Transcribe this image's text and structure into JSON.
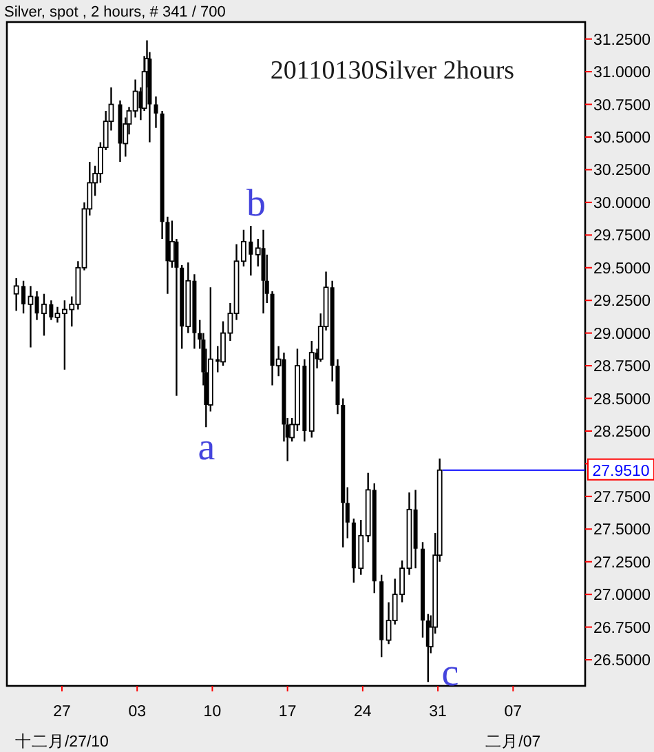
{
  "chart_data": {
    "type": "candlestick",
    "title": "20110130Silver 2hours",
    "subtitle": "Silver, spot , 2 hours, # 341 / 700",
    "color": "#000000",
    "x": [
      "2010-12-22T18:00",
      "2010-12-23T10:00",
      "2010-12-24T02:00",
      "2010-12-24T16:00",
      "2010-12-25T08:00",
      "2010-12-26T00:00",
      "2010-12-26T14:00",
      "2010-12-27T06:00",
      "2010-12-27T22:00",
      "2010-12-28T12:00",
      "2010-12-29T02:00",
      "2010-12-29T14:00",
      "2010-12-30T02:00",
      "2010-12-30T14:00",
      "2010-12-31T02:00",
      "2010-12-31T14:00",
      "2011-01-01T10:00",
      "2011-01-01T22:00",
      "2011-01-02T06:00",
      "2011-01-02T20:00",
      "2011-01-03T08:00",
      "2011-01-03T16:00",
      "2011-01-03T22:00",
      "2011-01-04T04:00",
      "2011-01-04T18:00",
      "2011-01-05T08:00",
      "2011-01-05T20:00",
      "2011-01-06T06:00",
      "2011-01-06T16:00",
      "2011-01-07T04:00",
      "2011-01-07T18:00",
      "2011-01-08T08:00",
      "2011-01-08T20:00",
      "2011-01-09T04:00",
      "2011-01-09T10:00",
      "2011-01-09T20:00",
      "2011-01-10T12:00",
      "2011-01-11T00:00",
      "2011-01-11T16:00",
      "2011-01-12T06:00",
      "2011-01-12T22:00",
      "2011-01-13T14:00",
      "2011-01-14T06:00",
      "2011-01-14T18:00",
      "2011-01-15T02:00",
      "2011-01-15T14:00",
      "2011-01-16T04:00",
      "2011-01-16T16:00",
      "2011-01-17T00:00",
      "2011-01-17T10:00",
      "2011-01-17T22:00",
      "2011-01-18T14:00",
      "2011-01-19T06:00",
      "2011-01-19T18:00",
      "2011-01-20T02:00",
      "2011-01-20T14:00",
      "2011-01-21T04:00",
      "2011-01-21T16:00",
      "2011-01-22T04:00",
      "2011-01-22T14:00",
      "2011-01-23T04:00",
      "2011-01-23T20:00",
      "2011-01-24T12:00",
      "2011-01-25T02:00",
      "2011-01-25T18:00",
      "2011-01-26T10:00",
      "2011-01-27T00:00",
      "2011-01-27T16:00",
      "2011-01-28T08:00",
      "2011-01-28T22:00",
      "2011-01-29T14:00",
      "2011-01-30T02:00",
      "2011-01-30T08:00",
      "2011-01-30T18:00",
      "2011-01-31T04:00"
    ],
    "ohlc": [
      [
        29.3,
        29.42,
        29.17,
        29.36
      ],
      [
        29.36,
        29.4,
        29.15,
        29.22
      ],
      [
        29.22,
        29.36,
        28.89,
        29.28
      ],
      [
        29.28,
        29.32,
        29.1,
        29.15
      ],
      [
        29.15,
        29.3,
        28.98,
        29.22
      ],
      [
        29.22,
        29.25,
        29.1,
        29.12
      ],
      [
        29.12,
        29.2,
        29.08,
        29.15
      ],
      [
        29.15,
        29.25,
        28.72,
        29.18
      ],
      [
        29.18,
        29.28,
        29.05,
        29.22
      ],
      [
        29.22,
        29.55,
        29.18,
        29.5
      ],
      [
        29.5,
        30.0,
        29.48,
        29.95
      ],
      [
        29.95,
        30.31,
        29.9,
        30.15
      ],
      [
        30.15,
        30.28,
        30.05,
        30.22
      ],
      [
        30.22,
        30.46,
        30.15,
        30.42
      ],
      [
        30.42,
        30.7,
        30.4,
        30.62
      ],
      [
        30.62,
        30.88,
        30.55,
        30.75
      ],
      [
        30.75,
        30.78,
        30.31,
        30.45
      ],
      [
        30.45,
        30.65,
        30.35,
        30.6
      ],
      [
        30.6,
        30.73,
        30.52,
        30.7
      ],
      [
        30.7,
        30.94,
        30.65,
        30.85
      ],
      [
        30.85,
        30.88,
        30.63,
        30.72
      ],
      [
        30.72,
        31.12,
        30.7,
        31.0
      ],
      [
        31.0,
        31.24,
        30.88,
        31.1
      ],
      [
        31.1,
        31.15,
        30.46,
        30.75
      ],
      [
        30.75,
        30.81,
        30.57,
        30.68
      ],
      [
        30.68,
        30.7,
        29.72,
        29.85
      ],
      [
        29.85,
        29.89,
        29.3,
        29.55
      ],
      [
        29.55,
        29.86,
        29.5,
        29.7
      ],
      [
        29.7,
        29.72,
        28.52,
        29.5
      ],
      [
        29.5,
        29.52,
        28.88,
        29.05
      ],
      [
        29.05,
        29.54,
        29.0,
        29.4
      ],
      [
        29.4,
        29.45,
        28.88,
        29.0
      ],
      [
        29.0,
        29.1,
        28.88,
        28.95
      ],
      [
        28.95,
        29.0,
        28.6,
        28.7
      ],
      [
        28.7,
        28.88,
        28.28,
        28.45
      ],
      [
        28.45,
        29.35,
        28.4,
        28.8
      ],
      [
        28.8,
        28.9,
        28.7,
        28.78
      ],
      [
        28.78,
        29.09,
        28.75,
        29.0
      ],
      [
        29.0,
        29.23,
        28.94,
        29.15
      ],
      [
        29.15,
        29.68,
        29.1,
        29.55
      ],
      [
        29.55,
        29.79,
        29.51,
        29.7
      ],
      [
        29.7,
        29.82,
        29.44,
        29.6
      ],
      [
        29.6,
        29.72,
        29.51,
        29.65
      ],
      [
        29.65,
        29.79,
        29.15,
        29.4
      ],
      [
        29.4,
        29.6,
        29.23,
        29.3
      ],
      [
        29.3,
        29.32,
        28.6,
        28.75
      ],
      [
        28.75,
        28.9,
        28.67,
        28.8
      ],
      [
        28.8,
        28.85,
        28.17,
        28.3
      ],
      [
        28.3,
        28.35,
        28.02,
        28.2
      ],
      [
        28.2,
        28.35,
        28.17,
        28.3
      ],
      [
        28.3,
        28.88,
        28.25,
        28.75
      ],
      [
        28.75,
        28.8,
        28.17,
        28.25
      ],
      [
        28.25,
        28.94,
        28.2,
        28.85
      ],
      [
        28.85,
        28.88,
        28.73,
        28.8
      ],
      [
        28.8,
        29.15,
        28.78,
        29.05
      ],
      [
        29.05,
        29.47,
        29.02,
        29.35
      ],
      [
        29.35,
        29.4,
        28.63,
        28.75
      ],
      [
        28.75,
        28.8,
        28.38,
        28.45
      ],
      [
        28.45,
        28.5,
        27.36,
        27.7
      ],
      [
        27.7,
        27.82,
        27.43,
        27.55
      ],
      [
        27.55,
        27.58,
        27.09,
        27.2
      ],
      [
        27.2,
        27.57,
        27.15,
        27.45
      ],
      [
        27.45,
        27.93,
        27.4,
        27.8
      ],
      [
        27.8,
        27.85,
        27.01,
        27.1
      ],
      [
        27.1,
        27.15,
        26.52,
        26.65
      ],
      [
        26.65,
        26.94,
        26.62,
        26.8
      ],
      [
        26.8,
        27.12,
        26.77,
        27.0
      ],
      [
        27.0,
        27.26,
        26.94,
        27.2
      ],
      [
        27.2,
        27.78,
        27.15,
        27.65
      ],
      [
        27.65,
        27.8,
        27.2,
        27.35
      ],
      [
        27.35,
        27.4,
        26.67,
        26.8
      ],
      [
        26.8,
        26.85,
        26.33,
        26.6
      ],
      [
        26.6,
        26.84,
        26.55,
        26.75
      ],
      [
        26.75,
        27.47,
        26.7,
        27.3
      ],
      [
        27.3,
        28.04,
        27.25,
        27.951
      ]
    ],
    "xlim": [
      "2010-12-21T21:00",
      "2011-02-13T17:00"
    ],
    "xticks": [
      {
        "value": "2010-12-27",
        "label": "27"
      },
      {
        "value": "2011-01-03",
        "label": "03"
      },
      {
        "value": "2011-01-10",
        "label": "10"
      },
      {
        "value": "2011-01-17",
        "label": "17"
      },
      {
        "value": "2011-01-24",
        "label": "24"
      },
      {
        "value": "2011-01-31",
        "label": "31"
      },
      {
        "value": "2011-02-07",
        "label": "07"
      }
    ],
    "x2lim": [
      "2010-12-21T21:00",
      "2011-02-13T17:00"
    ],
    "x2ticks": [
      {
        "value": "2010-12-27",
        "label": "十二月/27/10"
      },
      {
        "value": "2011-02-07",
        "label": "二月/07"
      }
    ],
    "ylim": [
      26.3,
      31.38
    ],
    "yticks": [
      {
        "value": 26.5,
        "label": "26.5000"
      },
      {
        "value": 26.75,
        "label": "26.7500"
      },
      {
        "value": 27,
        "label": "27.0000"
      },
      {
        "value": 27.25,
        "label": "27.2500"
      },
      {
        "value": 27.5,
        "label": "27.5000"
      },
      {
        "value": 27.75,
        "label": "27.7500"
      },
      {
        "value": 28,
        "label": null
      },
      {
        "value": 28.25,
        "label": "28.2500"
      },
      {
        "value": 28.5,
        "label": "28.5000"
      },
      {
        "value": 28.75,
        "label": "28.7500"
      },
      {
        "value": 29,
        "label": "29.0000"
      },
      {
        "value": 29.25,
        "label": "29.2500"
      },
      {
        "value": 29.5,
        "label": "29.5000"
      },
      {
        "value": 29.75,
        "label": "29.7500"
      },
      {
        "value": 30,
        "label": "30.0000"
      },
      {
        "value": 30.25,
        "label": "30.2500"
      },
      {
        "value": 30.5,
        "label": "30.5000"
      },
      {
        "value": 30.75,
        "label": "30.7500"
      },
      {
        "value": 31,
        "label": "31.0000"
      },
      {
        "value": 31.25,
        "label": "31.2500"
      }
    ],
    "ref_lines": [
      {
        "axis": "y",
        "value": 27.951,
        "label": "27.9510",
        "color": "#0000ff"
      }
    ],
    "annotations": [
      "a",
      "b",
      "c"
    ],
    "grid": false
  }
}
